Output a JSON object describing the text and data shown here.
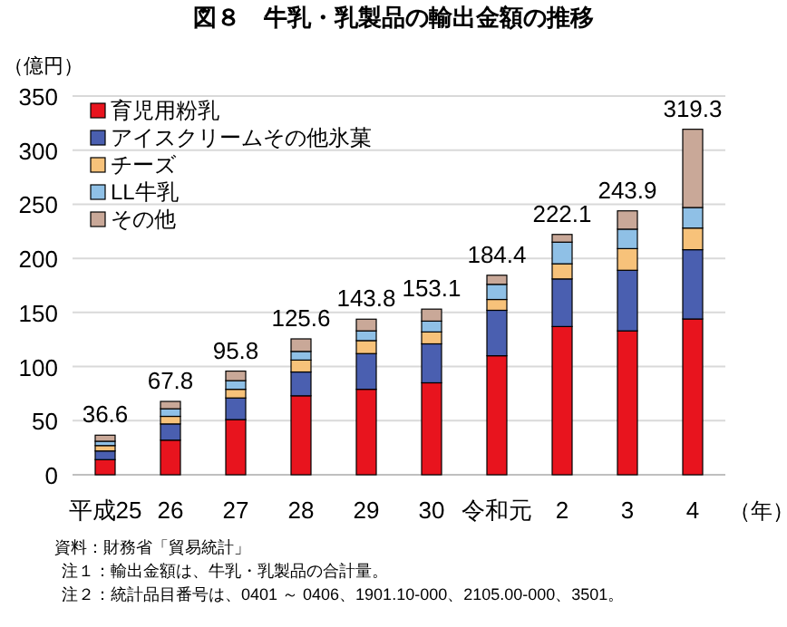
{
  "chart_data": {
    "type": "bar",
    "stacked": true,
    "title": "図８　牛乳・乳製品の輸出金額の推移",
    "ylabel": "（億円）",
    "xlabel": "（年）",
    "categories": [
      "平成25",
      "26",
      "27",
      "28",
      "29",
      "30",
      "令和元",
      "2",
      "3",
      "4"
    ],
    "series": [
      {
        "name": "育児用粉乳",
        "color": "#e8141e",
        "values": [
          14,
          32,
          51,
          73,
          79,
          85,
          110,
          137,
          133,
          144
        ]
      },
      {
        "name": "アイスクリームその他氷菓",
        "color": "#4a5fb0",
        "values": [
          8,
          15,
          20,
          22,
          33,
          36,
          42,
          44,
          56,
          64
        ]
      },
      {
        "name": "チーズ",
        "color": "#f7c27a",
        "values": [
          5,
          7,
          8,
          11,
          12,
          11,
          10,
          14,
          20,
          20
        ]
      },
      {
        "name": "LL牛乳",
        "color": "#8fc0e6",
        "values": [
          4,
          7,
          8,
          8,
          9,
          10,
          14,
          20,
          18,
          19
        ]
      },
      {
        "name": "その他",
        "color": "#c9a898",
        "values": [
          5.6,
          6.8,
          8.8,
          11.6,
          10.8,
          11.1,
          8.4,
          7.1,
          16.9,
          72.3
        ]
      }
    ],
    "totals": [
      "36.6",
      "67.8",
      "95.8",
      "125.6",
      "143.8",
      "153.1",
      "184.4",
      "222.1",
      "243.9",
      "319.3"
    ],
    "ylim": [
      0,
      350
    ],
    "yticks": [
      0,
      50,
      100,
      150,
      200,
      250,
      300,
      350
    ],
    "grid": "y",
    "legend": "top left",
    "annotations": [
      "資料：財務省「貿易統計」",
      "注１：輸出金額は、牛乳・乳製品の合計量。",
      "注２：統計品目番号は、0401 ～ 0406、1901.10-000、2105.00-000、3501。"
    ]
  }
}
